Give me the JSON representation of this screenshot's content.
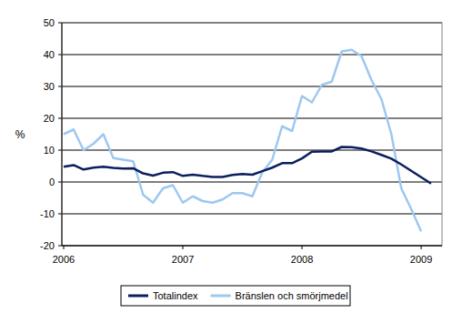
{
  "chart_data": {
    "type": "line",
    "y_label": "%",
    "categories": [
      "2006",
      null,
      null,
      null,
      null,
      null,
      null,
      null,
      null,
      null,
      null,
      null,
      "2007",
      null,
      null,
      null,
      null,
      null,
      null,
      null,
      null,
      null,
      null,
      null,
      "2008",
      null,
      null,
      null,
      null,
      null,
      null,
      null,
      null,
      null,
      null,
      null,
      "2009",
      null
    ],
    "series": [
      {
        "name": "Totalindex",
        "color": "#0b1f5e",
        "values": [
          4.8,
          5.3,
          3.9,
          4.5,
          4.8,
          4.4,
          4.2,
          4.3,
          2.7,
          2.0,
          2.9,
          3.1,
          1.9,
          2.3,
          1.9,
          1.6,
          1.6,
          2.2,
          2.5,
          2.3,
          3.4,
          4.5,
          5.9,
          5.9,
          7.4,
          9.5,
          9.6,
          9.6,
          11.0,
          10.9,
          10.5,
          9.6,
          8.5,
          7.3,
          5.5,
          3.5,
          1.5,
          -0.5
        ]
      },
      {
        "name": "Bränslen och smörjmedel",
        "color": "#9dc8f0",
        "values": [
          15.0,
          16.5,
          10.0,
          12.0,
          15.0,
          7.5,
          7.0,
          6.5,
          -4.0,
          -6.5,
          -2.0,
          -1.0,
          -6.5,
          -4.5,
          -6.0,
          -6.5,
          -5.5,
          -3.5,
          -3.5,
          -4.5,
          3.0,
          7.0,
          17.5,
          16.0,
          27.0,
          25.0,
          30.5,
          31.5,
          41.0,
          41.5,
          39.5,
          32.0,
          26.0,
          15.0,
          -2.0,
          -8.5,
          -15.5,
          null
        ]
      }
    ],
    "ylim": [
      -20,
      50
    ],
    "yticks": [
      -20,
      -10,
      0,
      10,
      20,
      30,
      40,
      50
    ],
    "grid": true,
    "legend": "bottom"
  }
}
